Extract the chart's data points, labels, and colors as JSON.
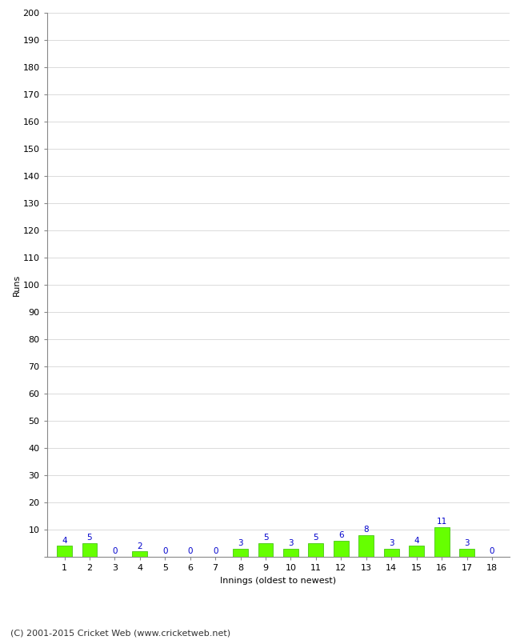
{
  "innings": [
    1,
    2,
    3,
    4,
    5,
    6,
    7,
    8,
    9,
    10,
    11,
    12,
    13,
    14,
    15,
    16,
    17,
    18
  ],
  "runs": [
    4,
    5,
    0,
    2,
    0,
    0,
    0,
    3,
    5,
    3,
    5,
    6,
    8,
    3,
    4,
    11,
    3,
    0
  ],
  "bar_color": "#66ff00",
  "bar_edge_color": "#33bb00",
  "label_color": "#0000cc",
  "xlabel": "Innings (oldest to newest)",
  "ylabel": "Runs",
  "ylim": [
    0,
    200
  ],
  "yticks": [
    0,
    10,
    20,
    30,
    40,
    50,
    60,
    70,
    80,
    90,
    100,
    110,
    120,
    130,
    140,
    150,
    160,
    170,
    180,
    190,
    200
  ],
  "footer": "(C) 2001-2015 Cricket Web (www.cricketweb.net)",
  "background_color": "#ffffff",
  "grid_color": "#cccccc",
  "label_fontsize": 7.5,
  "axis_fontsize": 8,
  "footer_fontsize": 8
}
